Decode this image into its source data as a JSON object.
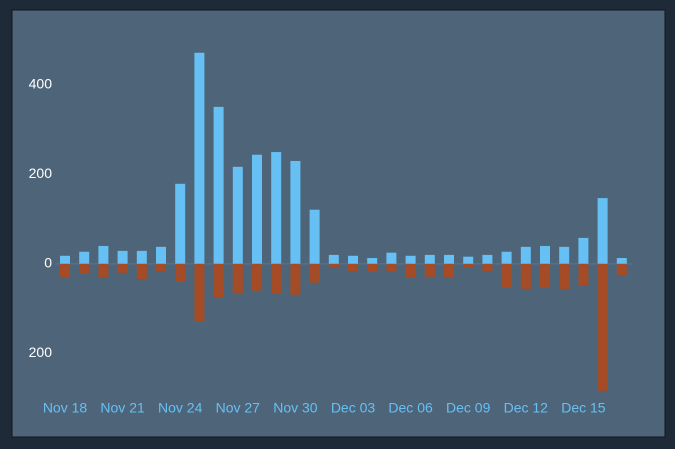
{
  "chart_data": {
    "type": "bar",
    "categories": [
      "Nov 18",
      null,
      null,
      "Nov 21",
      null,
      null,
      "Nov 24",
      null,
      null,
      "Nov 27",
      null,
      null,
      "Nov 30",
      null,
      null,
      "Dec 03",
      null,
      null,
      "Dec 06",
      null,
      null,
      "Dec 09",
      null,
      null,
      "Dec 12",
      null,
      null,
      "Dec 15",
      null,
      null
    ],
    "series": [
      {
        "color": "#66c0f4",
        "values": [
          18,
          27,
          40,
          29,
          29,
          38,
          179,
          472,
          351,
          217,
          244,
          250,
          230,
          121,
          20,
          18,
          13,
          25,
          18,
          20,
          20,
          16,
          20,
          27,
          38,
          40,
          38,
          58,
          147,
          13
        ]
      },
      {
        "color": "#a34c25",
        "values": [
          -31,
          -22,
          -31,
          -20,
          -34,
          -16,
          -40,
          -130,
          -76,
          -65,
          -60,
          -67,
          -69,
          -42,
          -7,
          -16,
          -18,
          -18,
          -31,
          -29,
          -31,
          -9,
          -16,
          -54,
          -56,
          -54,
          -56,
          -49,
          -284,
          -25
        ]
      }
    ],
    "ylim": [
      -300,
      520
    ],
    "yticks": [
      {
        "value": -200,
        "label": "200"
      },
      0,
      200,
      400
    ]
  }
}
